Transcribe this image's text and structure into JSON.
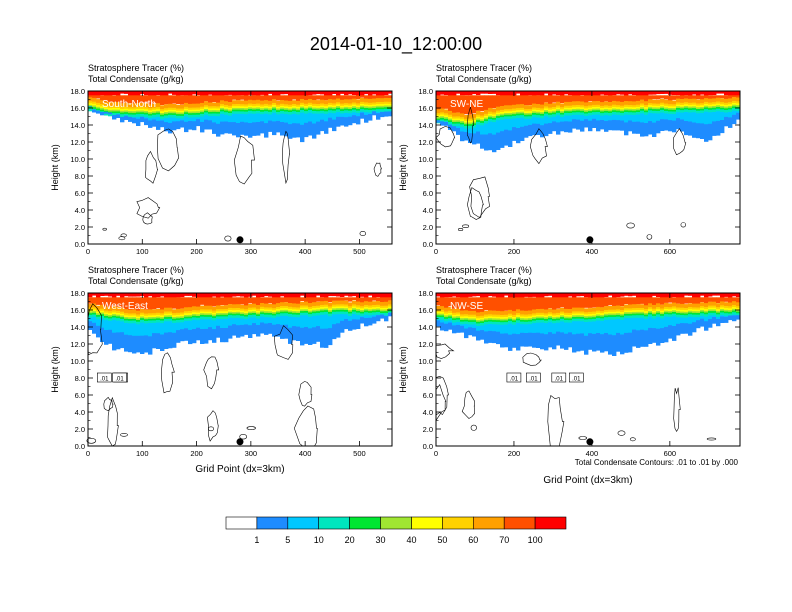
{
  "figure": {
    "title": "2014-01-10_12:00:00",
    "contour_note": "Total Condensate Contours: .01 to .01 by .000"
  },
  "colorbar": {
    "levels": [
      "1",
      "5",
      "10",
      "20",
      "30",
      "40",
      "50",
      "60",
      "70",
      "100"
    ],
    "colors": [
      "#ffffff",
      "#1e8cff",
      "#00c8ff",
      "#00e6be",
      "#00e632",
      "#a0e632",
      "#ffff00",
      "#ffd200",
      "#ffa000",
      "#ff5000",
      "#ff0000"
    ]
  },
  "chart_data": [
    {
      "type": "heatmap",
      "panel_label": "South-North",
      "title_line1": "Stratosphere Tracer   (%)",
      "title_line2": "Total Condensate   (g/kg)",
      "ylabel": "Height (km)",
      "xlabel": "",
      "xlim": [
        0,
        560
      ],
      "ylim": [
        0,
        18
      ],
      "xticks": [
        0,
        100,
        200,
        300,
        400,
        500
      ],
      "yticks": [
        0.0,
        2.0,
        4.0,
        6.0,
        8.0,
        10.0,
        12.0,
        14.0,
        16.0,
        18.0
      ],
      "marker_x": 280,
      "tropopause_km": [
        [
          0,
          16.2
        ],
        [
          60,
          15.6
        ],
        [
          150,
          15.4
        ],
        [
          250,
          15.8
        ],
        [
          330,
          15.9
        ],
        [
          420,
          16.0
        ],
        [
          560,
          16.2
        ]
      ],
      "cloud_base_km": [
        [
          0,
          16.0
        ],
        [
          40,
          15.0
        ],
        [
          90,
          14.2
        ],
        [
          150,
          13.2
        ],
        [
          200,
          13.6
        ],
        [
          250,
          12.8
        ],
        [
          300,
          12.5
        ],
        [
          350,
          13.0
        ],
        [
          400,
          12.2
        ],
        [
          450,
          13.5
        ],
        [
          500,
          14.4
        ],
        [
          560,
          15.4
        ]
      ]
    },
    {
      "type": "heatmap",
      "panel_label": "SW-NE",
      "title_line1": "Stratosphere Tracer   (%)",
      "title_line2": "Total Condensate   (g/kg)",
      "ylabel": "Height (km)",
      "xlabel": "",
      "xlim": [
        0,
        780
      ],
      "ylim": [
        0,
        18
      ],
      "xticks": [
        0,
        200,
        400,
        600
      ],
      "yticks": [
        0.0,
        2.0,
        4.0,
        6.0,
        8.0,
        10.0,
        12.0,
        14.0,
        16.0,
        18.0
      ],
      "marker_x": 395,
      "tropopause_km": [
        [
          0,
          15.0
        ],
        [
          80,
          14.2
        ],
        [
          160,
          15.2
        ],
        [
          300,
          15.6
        ],
        [
          450,
          15.8
        ],
        [
          600,
          16.0
        ],
        [
          780,
          16.2
        ]
      ],
      "cloud_base_km": [
        [
          0,
          14.5
        ],
        [
          60,
          12.5
        ],
        [
          140,
          11.0
        ],
        [
          220,
          12.2
        ],
        [
          300,
          13.0
        ],
        [
          400,
          13.5
        ],
        [
          480,
          13.0
        ],
        [
          560,
          12.8
        ],
        [
          620,
          13.5
        ],
        [
          700,
          12.2
        ],
        [
          780,
          14.8
        ]
      ]
    },
    {
      "type": "heatmap",
      "panel_label": "West-East",
      "title_line1": "Stratosphere Tracer   (%)",
      "title_line2": "Total Condensate   (g/kg)",
      "ylabel": "Height (km)",
      "xlabel": "Grid Point (dx=3km)",
      "xlim": [
        0,
        560
      ],
      "ylim": [
        0,
        18
      ],
      "xticks": [
        0,
        100,
        200,
        300,
        400,
        500
      ],
      "yticks": [
        0.0,
        2.0,
        4.0,
        6.0,
        8.0,
        10.0,
        12.0,
        14.0,
        16.0,
        18.0
      ],
      "marker_x": 280,
      "tropopause_km": [
        [
          0,
          15.8
        ],
        [
          80,
          15.0
        ],
        [
          160,
          15.2
        ],
        [
          260,
          15.6
        ],
        [
          360,
          15.8
        ],
        [
          460,
          16.0
        ],
        [
          560,
          16.0
        ]
      ],
      "cloud_base_km": [
        [
          0,
          13.5
        ],
        [
          50,
          11.5
        ],
        [
          110,
          11.0
        ],
        [
          180,
          12.2
        ],
        [
          250,
          12.5
        ],
        [
          320,
          13.2
        ],
        [
          380,
          12.2
        ],
        [
          440,
          11.8
        ],
        [
          480,
          13.8
        ],
        [
          560,
          15.0
        ]
      ],
      "contour_labels": [
        ".01",
        ".01",
        ".01"
      ]
    },
    {
      "type": "heatmap",
      "panel_label": "NW-SE",
      "title_line1": "Stratosphere Tracer   (%)",
      "title_line2": "Total Condensate   (g/kg)",
      "ylabel": "Height (km)",
      "xlabel": "Grid Point (dx=3km)",
      "xlim": [
        0,
        780
      ],
      "ylim": [
        0,
        18
      ],
      "xticks": [
        0,
        200,
        400,
        600
      ],
      "yticks": [
        0.0,
        2.0,
        4.0,
        6.0,
        8.0,
        10.0,
        12.0,
        14.0,
        16.0,
        18.0
      ],
      "marker_x": 395,
      "tropopause_km": [
        [
          0,
          15.5
        ],
        [
          100,
          14.8
        ],
        [
          220,
          15.0
        ],
        [
          360,
          15.2
        ],
        [
          500,
          15.6
        ],
        [
          640,
          15.8
        ],
        [
          780,
          16.0
        ]
      ],
      "cloud_base_km": [
        [
          0,
          14.2
        ],
        [
          80,
          12.8
        ],
        [
          180,
          11.4
        ],
        [
          300,
          11.6
        ],
        [
          400,
          11.0
        ],
        [
          460,
          10.8
        ],
        [
          540,
          11.8
        ],
        [
          640,
          13.0
        ],
        [
          700,
          14.0
        ],
        [
          780,
          15.0
        ]
      ],
      "contour_labels": [
        ".01",
        ".01",
        ".01",
        ".01"
      ]
    }
  ]
}
